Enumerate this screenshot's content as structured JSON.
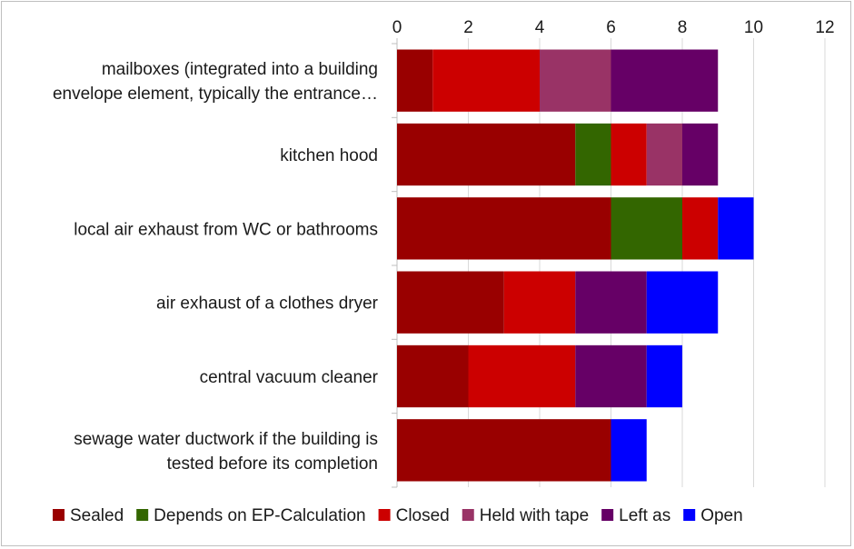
{
  "chart_data": {
    "type": "bar",
    "orientation": "horizontal",
    "stacked": true,
    "categories": [
      [
        "mailboxes (integrated into a building",
        "envelope element, typically the entrance…"
      ],
      [
        "kitchen hood"
      ],
      [
        "local air exhaust from WC or bathrooms"
      ],
      [
        "air exhaust of a clothes dryer"
      ],
      [
        "central vacuum cleaner"
      ],
      [
        "sewage water ductwork if the building is",
        "tested before its completion"
      ]
    ],
    "series": [
      {
        "name": "Sealed",
        "color": "#990000",
        "values": [
          1,
          5,
          6,
          3,
          2,
          6
        ]
      },
      {
        "name": "Depends on EP-Calculation",
        "color": "#336600",
        "values": [
          0,
          1,
          2,
          0,
          0,
          0
        ]
      },
      {
        "name": "Closed",
        "color": "#cc0000",
        "values": [
          3,
          1,
          1,
          2,
          3,
          0
        ]
      },
      {
        "name": "Held with tape",
        "color": "#993366",
        "values": [
          2,
          1,
          0,
          0,
          0,
          0
        ]
      },
      {
        "name": "Left as",
        "color": "#660066",
        "values": [
          3,
          1,
          0,
          2,
          2,
          0
        ]
      },
      {
        "name": "Open",
        "color": "#0000ff",
        "values": [
          0,
          0,
          1,
          2,
          1,
          1
        ]
      }
    ],
    "x_ticks": [
      0,
      2,
      4,
      6,
      8,
      10,
      12
    ],
    "xlim": [
      0,
      12
    ],
    "x_axis_position": "top",
    "grid": true,
    "legend_position": "bottom"
  }
}
